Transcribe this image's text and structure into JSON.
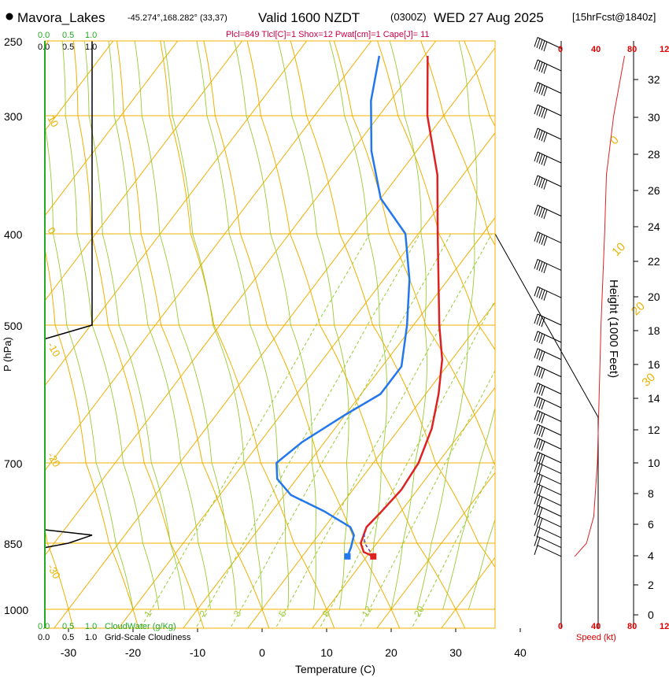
{
  "header": {
    "station": "Mavora_Lakes",
    "coords": "-45.274°,168.282° (33,37)",
    "valid": "Valid 1600 NZDT",
    "utc": "(0300Z)",
    "date": "WED 27 Aug 2025",
    "forecast": "[15hrFcst@1840z]",
    "indices": "Plcl=849 Tlcl[C]=1 Shox=12 Pwat[cm]=1 Cape[J]= 11"
  },
  "colors": {
    "temperature": "#dd2222",
    "dewpoint": "#2277ee",
    "parcel": "#dd2222",
    "isotherm": "#f0b000",
    "dry_adiabat": "#f0b000",
    "moist_adiabat": "#99cc33",
    "mixing_ratio": "#99cc33",
    "cloud_water": "#22aa22",
    "speed": "#dd2222"
  },
  "labels": {
    "xlabel": "Temperature (C)",
    "ylabel": "P (hPa)",
    "height_label": "Height (1000 Feet)",
    "speed_label": "Speed (kt)",
    "cloudwater_label": "CloudWater (g/Kg)",
    "cloudiness_label": "Grid-Scale Cloudiness",
    "scale_top_green": [
      "0.0",
      "0.5",
      "1.0"
    ],
    "scale_top_black": [
      "0.0",
      "0.5",
      "1.0"
    ],
    "scale_bot_green": [
      "0.0",
      "0.5",
      "1.0"
    ],
    "scale_bot_black": [
      "0.0",
      "0.5",
      "1.0"
    ],
    "speed_ticks": [
      "0",
      "40",
      "80",
      "12"
    ]
  },
  "chart_data": {
    "type": "skew-t",
    "title": "Mavora_Lakes Valid 1600 NZDT (0300Z) WED 27 Aug 2025",
    "pressure_ticks": [
      250,
      300,
      400,
      500,
      700,
      850,
      1000
    ],
    "temperature_ticks": [
      -30,
      -20,
      -10,
      0,
      10,
      20,
      30,
      40
    ],
    "height_ticks_kft": [
      0,
      2,
      4,
      6,
      8,
      10,
      12,
      14,
      16,
      18,
      20,
      22,
      24,
      26,
      28,
      30,
      32
    ],
    "isotherm_labels": [
      "0",
      "10",
      "20",
      "30"
    ],
    "dry_adiabat_labels": [
      "10",
      "0",
      "-10",
      "-20",
      "-30"
    ],
    "mixing_ratio_labels": [
      "1",
      "2",
      "3",
      "5",
      "8",
      "12",
      "20"
    ],
    "temperature_profile": [
      {
        "p": 880,
        "t": 11.0
      },
      {
        "p": 870,
        "t": 9.0
      },
      {
        "p": 850,
        "t": 7.5
      },
      {
        "p": 820,
        "t": 6.5
      },
      {
        "p": 790,
        "t": 7.0
      },
      {
        "p": 750,
        "t": 7.5
      },
      {
        "p": 700,
        "t": 7.0
      },
      {
        "p": 650,
        "t": 5.0
      },
      {
        "p": 600,
        "t": 2.0
      },
      {
        "p": 550,
        "t": -1.5
      },
      {
        "p": 500,
        "t": -6.0
      },
      {
        "p": 450,
        "t": -11.5
      },
      {
        "p": 400,
        "t": -17.0
      },
      {
        "p": 350,
        "t": -24.0
      },
      {
        "p": 300,
        "t": -32.5
      },
      {
        "p": 260,
        "t": -39.5
      }
    ],
    "dewpoint_profile": [
      {
        "p": 880,
        "t": 7.0
      },
      {
        "p": 860,
        "t": 6.5
      },
      {
        "p": 835,
        "t": 5.5
      },
      {
        "p": 820,
        "t": 4.0
      },
      {
        "p": 790,
        "t": -2.0
      },
      {
        "p": 760,
        "t": -9.0
      },
      {
        "p": 730,
        "t": -13.0
      },
      {
        "p": 700,
        "t": -15.0
      },
      {
        "p": 670,
        "t": -13.5
      },
      {
        "p": 630,
        "t": -10.0
      },
      {
        "p": 600,
        "t": -7.0
      },
      {
        "p": 560,
        "t": -7.0
      },
      {
        "p": 500,
        "t": -11.0
      },
      {
        "p": 450,
        "t": -16.0
      },
      {
        "p": 400,
        "t": -22.0
      },
      {
        "p": 370,
        "t": -30.0
      },
      {
        "p": 330,
        "t": -37.0
      },
      {
        "p": 290,
        "t": -43.0
      },
      {
        "p": 260,
        "t": -47.0
      }
    ],
    "parcel_profile": [
      {
        "p": 880,
        "t": 11.0
      },
      {
        "p": 849,
        "t": 8.0
      },
      {
        "p": 830,
        "t": 6.8
      }
    ],
    "cloudiness_profile": [
      {
        "p": 1000,
        "c": 0.0
      },
      {
        "p": 860,
        "c": 0.0
      },
      {
        "p": 850,
        "c": 0.5
      },
      {
        "p": 835,
        "c": 1.0
      },
      {
        "p": 825,
        "c": 0.0
      },
      {
        "p": 520,
        "c": 0.0
      },
      {
        "p": 500,
        "c": 1.0
      },
      {
        "p": 450,
        "c": 1.0
      },
      {
        "p": 250,
        "c": 1.0
      }
    ],
    "wind_speed_profile": [
      {
        "p": 880,
        "kt": 15
      },
      {
        "p": 850,
        "kt": 28
      },
      {
        "p": 800,
        "kt": 36
      },
      {
        "p": 700,
        "kt": 40
      },
      {
        "p": 600,
        "kt": 42
      },
      {
        "p": 500,
        "kt": 44
      },
      {
        "p": 450,
        "kt": 46
      },
      {
        "p": 400,
        "kt": 48
      },
      {
        "p": 350,
        "kt": 50
      },
      {
        "p": 300,
        "kt": 58
      },
      {
        "p": 260,
        "kt": 70
      }
    ],
    "wind_barbs": [
      {
        "p": 255,
        "kt": 50
      },
      {
        "p": 270,
        "kt": 50
      },
      {
        "p": 285,
        "kt": 50
      },
      {
        "p": 300,
        "kt": 45
      },
      {
        "p": 320,
        "kt": 45
      },
      {
        "p": 340,
        "kt": 45
      },
      {
        "p": 360,
        "kt": 45
      },
      {
        "p": 385,
        "kt": 45
      },
      {
        "p": 410,
        "kt": 45
      },
      {
        "p": 440,
        "kt": 45
      },
      {
        "p": 470,
        "kt": 45
      },
      {
        "p": 500,
        "kt": 40
      },
      {
        "p": 525,
        "kt": 40
      },
      {
        "p": 550,
        "kt": 40
      },
      {
        "p": 575,
        "kt": 40
      },
      {
        "p": 600,
        "kt": 40
      },
      {
        "p": 620,
        "kt": 35
      },
      {
        "p": 640,
        "kt": 35
      },
      {
        "p": 660,
        "kt": 35
      },
      {
        "p": 680,
        "kt": 35
      },
      {
        "p": 700,
        "kt": 35
      },
      {
        "p": 720,
        "kt": 30
      },
      {
        "p": 740,
        "kt": 30
      },
      {
        "p": 760,
        "kt": 30
      },
      {
        "p": 780,
        "kt": 25
      },
      {
        "p": 800,
        "kt": 25
      },
      {
        "p": 820,
        "kt": 25
      },
      {
        "p": 840,
        "kt": 20
      },
      {
        "p": 860,
        "kt": 15
      },
      {
        "p": 880,
        "kt": 10
      }
    ]
  }
}
